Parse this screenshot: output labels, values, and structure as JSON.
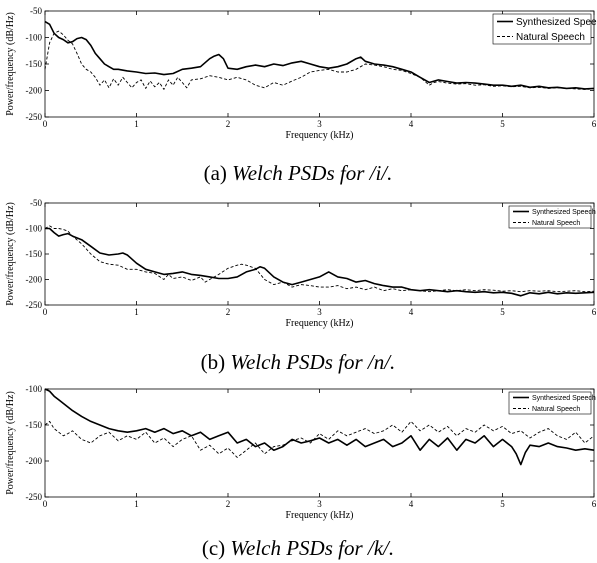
{
  "chart_data": [
    {
      "type": "line",
      "caption_prefix": "(a) ",
      "caption_italic": "Welch PSDs for /i/.",
      "xlabel": "Frequency (kHz)",
      "ylabel": "Power/frequency (dB/Hz)",
      "xlim": [
        0,
        6
      ],
      "ylim": [
        -250,
        -50
      ],
      "xticks": [
        0,
        1,
        2,
        3,
        4,
        5,
        6
      ],
      "yticks": [
        -250,
        -200,
        -150,
        -100,
        -50
      ],
      "grid": false,
      "legend_position": "top-right",
      "series": [
        {
          "name": "Synthesized Speech",
          "style": "solid",
          "x": [
            0,
            0.05,
            0.1,
            0.15,
            0.2,
            0.25,
            0.3,
            0.35,
            0.4,
            0.45,
            0.5,
            0.55,
            0.6,
            0.65,
            0.7,
            0.75,
            0.8,
            0.9,
            1.0,
            1.1,
            1.2,
            1.3,
            1.4,
            1.5,
            1.6,
            1.7,
            1.8,
            1.85,
            1.9,
            1.95,
            2.0,
            2.1,
            2.2,
            2.3,
            2.4,
            2.5,
            2.6,
            2.7,
            2.8,
            2.9,
            3.0,
            3.1,
            3.2,
            3.3,
            3.4,
            3.45,
            3.5,
            3.6,
            3.7,
            3.8,
            3.9,
            4.0,
            4.1,
            4.2,
            4.3,
            4.4,
            4.5,
            4.6,
            4.7,
            4.8,
            4.9,
            5.0,
            5.1,
            5.2,
            5.3,
            5.4,
            5.5,
            5.6,
            5.7,
            5.8,
            5.9,
            6.0
          ],
          "y": [
            -70,
            -75,
            -92,
            -100,
            -104,
            -110,
            -108,
            -102,
            -100,
            -104,
            -115,
            -130,
            -140,
            -150,
            -155,
            -160,
            -160,
            -163,
            -165,
            -168,
            -167,
            -170,
            -168,
            -160,
            -158,
            -155,
            -140,
            -135,
            -132,
            -140,
            -158,
            -160,
            -155,
            -152,
            -155,
            -150,
            -153,
            -148,
            -145,
            -150,
            -155,
            -158,
            -155,
            -150,
            -140,
            -137,
            -145,
            -150,
            -152,
            -155,
            -160,
            -165,
            -175,
            -185,
            -180,
            -183,
            -186,
            -185,
            -186,
            -188,
            -190,
            -190,
            -192,
            -190,
            -194,
            -192,
            -195,
            -194,
            -196,
            -195,
            -197,
            -196
          ]
        },
        {
          "name": "Natural Speech",
          "style": "dashed",
          "x": [
            0,
            0.05,
            0.1,
            0.15,
            0.2,
            0.25,
            0.3,
            0.35,
            0.4,
            0.45,
            0.5,
            0.55,
            0.6,
            0.65,
            0.7,
            0.75,
            0.8,
            0.85,
            0.9,
            0.95,
            1.0,
            1.05,
            1.1,
            1.15,
            1.2,
            1.25,
            1.3,
            1.35,
            1.4,
            1.45,
            1.5,
            1.55,
            1.6,
            1.7,
            1.8,
            1.9,
            2.0,
            2.1,
            2.2,
            2.3,
            2.4,
            2.5,
            2.6,
            2.7,
            2.8,
            2.9,
            3.0,
            3.1,
            3.2,
            3.3,
            3.4,
            3.5,
            3.6,
            3.7,
            3.8,
            3.9,
            4.0,
            4.1,
            4.2,
            4.25,
            4.3,
            4.4,
            4.5,
            4.6,
            4.7,
            4.8,
            4.9,
            5.0,
            5.1,
            5.2,
            5.3,
            5.4,
            5.5,
            5.6,
            5.7,
            5.8,
            5.9,
            6.0
          ],
          "y": [
            -160,
            -110,
            -92,
            -88,
            -95,
            -105,
            -112,
            -130,
            -150,
            -160,
            -165,
            -175,
            -190,
            -180,
            -195,
            -178,
            -190,
            -175,
            -185,
            -195,
            -185,
            -180,
            -196,
            -182,
            -193,
            -185,
            -198,
            -180,
            -190,
            -175,
            -185,
            -195,
            -180,
            -178,
            -172,
            -175,
            -180,
            -175,
            -180,
            -190,
            -195,
            -185,
            -190,
            -182,
            -175,
            -165,
            -162,
            -160,
            -165,
            -165,
            -160,
            -150,
            -152,
            -155,
            -160,
            -162,
            -168,
            -175,
            -190,
            -185,
            -183,
            -186,
            -188,
            -187,
            -190,
            -189,
            -192,
            -191,
            -193,
            -192,
            -195,
            -194,
            -196,
            -195,
            -196,
            -197,
            -198,
            -197
          ]
        }
      ]
    },
    {
      "type": "line",
      "caption_prefix": "(b) ",
      "caption_italic": "Welch PSDs for /n/.",
      "xlabel": "Frequency (kHz)",
      "ylabel": "Power/frequency (dB/Hz)",
      "xlim": [
        0,
        6
      ],
      "ylim": [
        -250,
        -50
      ],
      "xticks": [
        0,
        1,
        2,
        3,
        4,
        5,
        6
      ],
      "yticks": [
        -250,
        -200,
        -150,
        -100,
        -50
      ],
      "grid": false,
      "legend_position": "top-right",
      "series": [
        {
          "name": "Synthesized Speech",
          "style": "solid",
          "x": [
            0,
            0.05,
            0.1,
            0.15,
            0.2,
            0.25,
            0.3,
            0.4,
            0.5,
            0.6,
            0.7,
            0.8,
            0.85,
            0.9,
            1.0,
            1.1,
            1.2,
            1.3,
            1.4,
            1.5,
            1.6,
            1.7,
            1.8,
            1.9,
            2.0,
            2.1,
            2.2,
            2.3,
            2.35,
            2.4,
            2.5,
            2.6,
            2.7,
            2.8,
            2.9,
            3.0,
            3.1,
            3.2,
            3.3,
            3.4,
            3.5,
            3.6,
            3.7,
            3.8,
            3.9,
            4.0,
            4.1,
            4.2,
            4.3,
            4.4,
            4.5,
            4.6,
            4.7,
            4.8,
            4.9,
            5.0,
            5.1,
            5.2,
            5.3,
            5.4,
            5.5,
            5.6,
            5.7,
            5.8,
            5.9,
            6.0
          ],
          "y": [
            -100,
            -100,
            -108,
            -115,
            -112,
            -110,
            -115,
            -122,
            -135,
            -148,
            -152,
            -150,
            -148,
            -152,
            -168,
            -180,
            -185,
            -190,
            -188,
            -185,
            -190,
            -192,
            -195,
            -198,
            -198,
            -195,
            -185,
            -180,
            -175,
            -178,
            -195,
            -205,
            -210,
            -205,
            -200,
            -195,
            -185,
            -195,
            -198,
            -205,
            -202,
            -208,
            -212,
            -215,
            -215,
            -220,
            -222,
            -220,
            -222,
            -224,
            -222,
            -224,
            -225,
            -224,
            -226,
            -225,
            -227,
            -232,
            -226,
            -228,
            -225,
            -228,
            -226,
            -227,
            -226,
            -225
          ]
        },
        {
          "name": "Natural Speech",
          "style": "dashed",
          "x": [
            0,
            0.05,
            0.1,
            0.15,
            0.2,
            0.25,
            0.3,
            0.4,
            0.5,
            0.6,
            0.7,
            0.8,
            0.9,
            1.0,
            1.1,
            1.2,
            1.3,
            1.35,
            1.4,
            1.5,
            1.6,
            1.7,
            1.75,
            1.8,
            1.9,
            2.0,
            2.1,
            2.15,
            2.2,
            2.3,
            2.4,
            2.5,
            2.6,
            2.7,
            2.8,
            2.9,
            3.0,
            3.1,
            3.2,
            3.3,
            3.4,
            3.5,
            3.6,
            3.7,
            3.8,
            3.9,
            4.0,
            4.1,
            4.2,
            4.3,
            4.4,
            4.5,
            4.6,
            4.7,
            4.8,
            4.9,
            5.0,
            5.1,
            5.2,
            5.3,
            5.4,
            5.5,
            5.6,
            5.7,
            5.8,
            5.9,
            6.0
          ],
          "y": [
            -100,
            -95,
            -100,
            -100,
            -102,
            -105,
            -115,
            -130,
            -150,
            -165,
            -170,
            -172,
            -180,
            -180,
            -185,
            -188,
            -200,
            -190,
            -198,
            -195,
            -202,
            -195,
            -205,
            -200,
            -190,
            -178,
            -172,
            -170,
            -172,
            -178,
            -200,
            -210,
            -205,
            -215,
            -210,
            -212,
            -215,
            -215,
            -212,
            -218,
            -215,
            -220,
            -215,
            -222,
            -218,
            -222,
            -220,
            -222,
            -224,
            -222,
            -220,
            -222,
            -220,
            -222,
            -220,
            -221,
            -223,
            -222,
            -224,
            -222,
            -223,
            -222,
            -224,
            -223,
            -222,
            -224,
            -223
          ]
        }
      ]
    },
    {
      "type": "line",
      "caption_prefix": "(c) ",
      "caption_italic": "Welch PSDs for /k/.",
      "xlabel": "Frequency (kHz)",
      "ylabel": "Power/frequency (dB/Hz)",
      "xlim": [
        0,
        6
      ],
      "ylim": [
        -250,
        -100
      ],
      "xticks": [
        0,
        1,
        2,
        3,
        4,
        5,
        6
      ],
      "yticks": [
        -250,
        -200,
        -150,
        -100
      ],
      "grid": false,
      "legend_position": "top-right",
      "series": [
        {
          "name": "Synthesized Speech",
          "style": "solid",
          "x": [
            0,
            0.05,
            0.1,
            0.15,
            0.2,
            0.25,
            0.3,
            0.4,
            0.5,
            0.6,
            0.7,
            0.8,
            0.9,
            1.0,
            1.1,
            1.2,
            1.3,
            1.4,
            1.5,
            1.6,
            1.7,
            1.8,
            1.9,
            2.0,
            2.1,
            2.2,
            2.3,
            2.4,
            2.5,
            2.6,
            2.7,
            2.8,
            2.9,
            3.0,
            3.1,
            3.2,
            3.3,
            3.4,
            3.5,
            3.6,
            3.7,
            3.8,
            3.9,
            4.0,
            4.1,
            4.2,
            4.3,
            4.4,
            4.5,
            4.6,
            4.7,
            4.8,
            4.9,
            5.0,
            5.1,
            5.15,
            5.2,
            5.25,
            5.3,
            5.4,
            5.5,
            5.6,
            5.7,
            5.8,
            5.9,
            6.0
          ],
          "y": [
            -100,
            -103,
            -110,
            -115,
            -120,
            -125,
            -130,
            -138,
            -145,
            -150,
            -155,
            -158,
            -160,
            -158,
            -155,
            -160,
            -155,
            -162,
            -158,
            -165,
            -160,
            -170,
            -165,
            -160,
            -175,
            -170,
            -180,
            -175,
            -185,
            -180,
            -170,
            -175,
            -172,
            -168,
            -175,
            -170,
            -178,
            -170,
            -180,
            -175,
            -170,
            -180,
            -175,
            -165,
            -185,
            -170,
            -180,
            -168,
            -185,
            -170,
            -175,
            -165,
            -180,
            -170,
            -180,
            -190,
            -205,
            -188,
            -178,
            -180,
            -175,
            -180,
            -182,
            -185,
            -183,
            -185
          ]
        },
        {
          "name": "Natural Speech",
          "style": "dashed",
          "x": [
            0,
            0.05,
            0.1,
            0.15,
            0.2,
            0.25,
            0.3,
            0.4,
            0.5,
            0.6,
            0.7,
            0.8,
            0.9,
            1.0,
            1.1,
            1.2,
            1.3,
            1.4,
            1.5,
            1.6,
            1.7,
            1.8,
            1.9,
            2.0,
            2.1,
            2.2,
            2.3,
            2.4,
            2.5,
            2.6,
            2.7,
            2.8,
            2.9,
            3.0,
            3.1,
            3.2,
            3.3,
            3.4,
            3.5,
            3.6,
            3.7,
            3.8,
            3.9,
            4.0,
            4.1,
            4.2,
            4.3,
            4.4,
            4.5,
            4.6,
            4.7,
            4.8,
            4.9,
            5.0,
            5.1,
            5.2,
            5.3,
            5.4,
            5.5,
            5.6,
            5.7,
            5.8,
            5.9,
            6.0
          ],
          "y": [
            -150,
            -145,
            -155,
            -160,
            -165,
            -162,
            -158,
            -170,
            -175,
            -165,
            -160,
            -172,
            -165,
            -170,
            -160,
            -175,
            -168,
            -180,
            -170,
            -165,
            -185,
            -178,
            -190,
            -182,
            -195,
            -185,
            -175,
            -190,
            -180,
            -178,
            -172,
            -168,
            -175,
            -162,
            -170,
            -158,
            -165,
            -160,
            -155,
            -162,
            -158,
            -150,
            -160,
            -145,
            -158,
            -150,
            -160,
            -152,
            -165,
            -155,
            -160,
            -150,
            -158,
            -152,
            -162,
            -158,
            -168,
            -160,
            -155,
            -165,
            -170,
            -160,
            -175,
            -165
          ]
        }
      ]
    }
  ]
}
